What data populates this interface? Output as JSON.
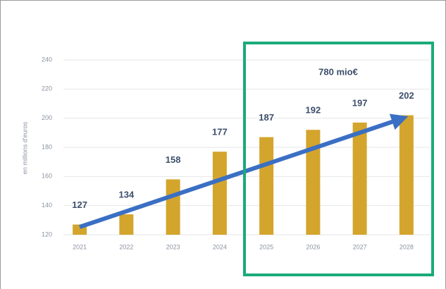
{
  "chart_data": {
    "type": "bar",
    "y_axis_label": "en millions d'euros",
    "annotation": "780 mio€",
    "categories": [
      "2021",
      "2022",
      "2023",
      "2024",
      "2025",
      "2026",
      "2027",
      "2028"
    ],
    "values": [
      127,
      134,
      158,
      177,
      187,
      192,
      197,
      202
    ],
    "color": "#d4a52c",
    "ylim": [
      120,
      240
    ],
    "yticks": [
      120,
      140,
      160,
      180,
      200,
      220,
      240
    ],
    "grid": true
  }
}
